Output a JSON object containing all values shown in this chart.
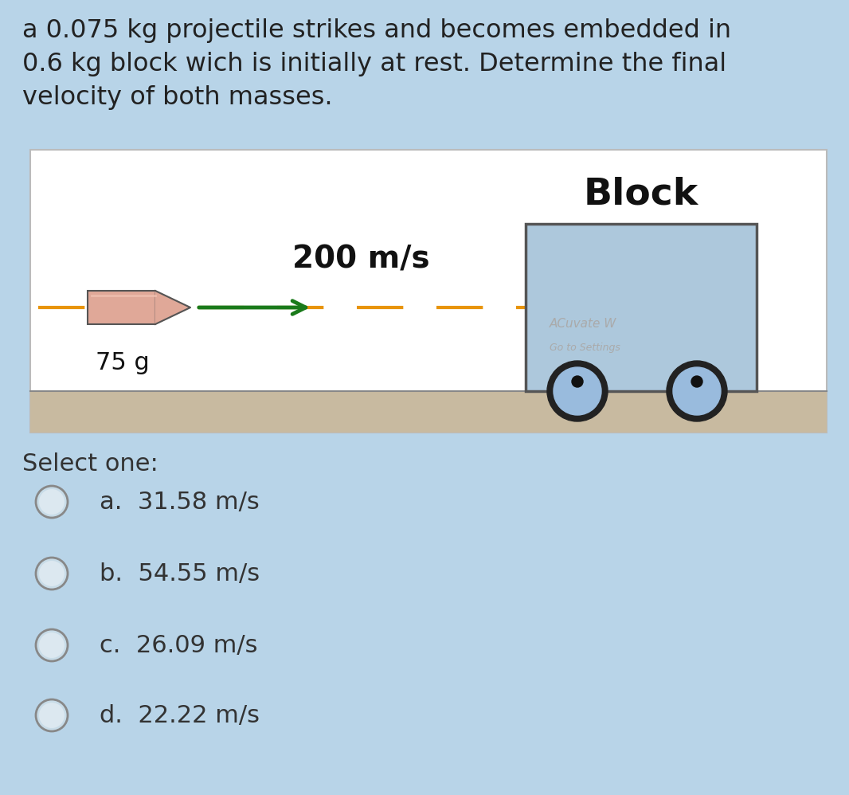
{
  "bg_color": "#b8d4e8",
  "title_text": "a 0.075 kg projectile strikes and becomes embedded in\n0.6 kg block wich is initially at rest. Determine the final\nvelocity of both masses.",
  "title_fontsize": 23,
  "title_color": "#222222",
  "diagram_bg": "#ffffff",
  "diagram_border": "#bbbbbb",
  "block_color": "#adc8dc",
  "block_border": "#555555",
  "block_label": "Block",
  "block_label_color": "#111111",
  "block_label_fontsize": 34,
  "bullet_body_color": "#e0a898",
  "bullet_nose_color": "#c88878",
  "bullet_outline": "#555555",
  "velocity_label": "200 m/s",
  "velocity_fontsize": 28,
  "mass_label": "75 g",
  "mass_fontsize": 22,
  "arrow_color": "#1a7a1a",
  "dashed_color": "#e8940a",
  "floor_top_color": "#999999",
  "floor_color": "#c8baa0",
  "wheel_outer_color": "#222222",
  "wheel_mid_color": "#99bbdd",
  "wheel_inner_color": "#111111",
  "select_text": "Select one:",
  "select_fontsize": 22,
  "options": [
    "a.  31.58 m/s",
    "b.  54.55 m/s",
    "c.  26.09 m/s",
    "d.  22.22 m/s"
  ],
  "option_fontsize": 22,
  "option_color": "#333333",
  "radio_edge": "#888888",
  "radio_fill": "#c8dce8"
}
